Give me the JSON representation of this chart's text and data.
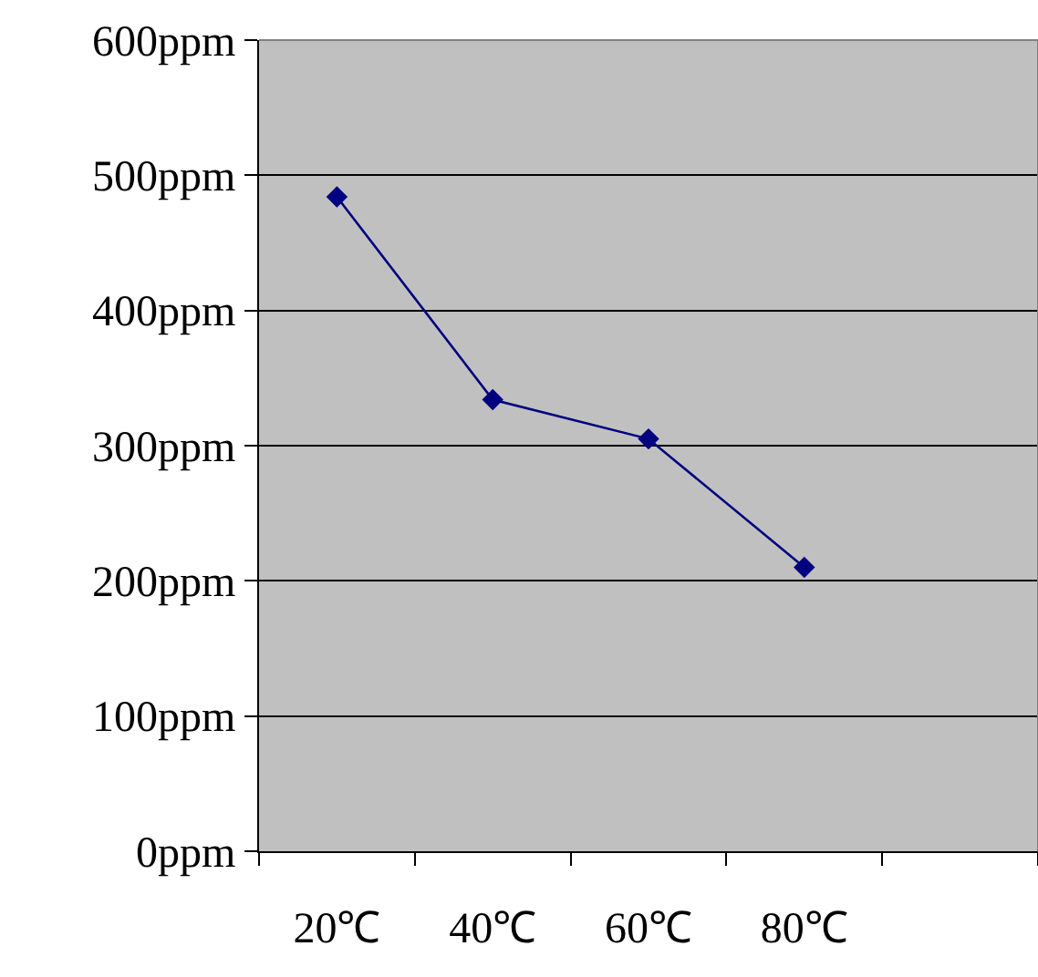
{
  "chart_data": {
    "type": "line",
    "categories": [
      "20℃",
      "40℃",
      "60℃",
      "80℃",
      null
    ],
    "series": [
      {
        "color": "#000080",
        "values": [
          484,
          334,
          305,
          210,
          null
        ]
      }
    ],
    "ylim": [
      0,
      600
    ],
    "yticks": [
      {
        "value": 0,
        "label": "0ppm"
      },
      {
        "value": 100,
        "label": "100ppm"
      },
      {
        "value": 200,
        "label": "200ppm"
      },
      {
        "value": 300,
        "label": "300ppm"
      },
      {
        "value": 400,
        "label": "400ppm"
      },
      {
        "value": 500,
        "label": "500ppm"
      },
      {
        "value": 600,
        "label": "600ppm"
      }
    ],
    "grid": "y",
    "marker": "diamond",
    "line_style": "solid"
  }
}
